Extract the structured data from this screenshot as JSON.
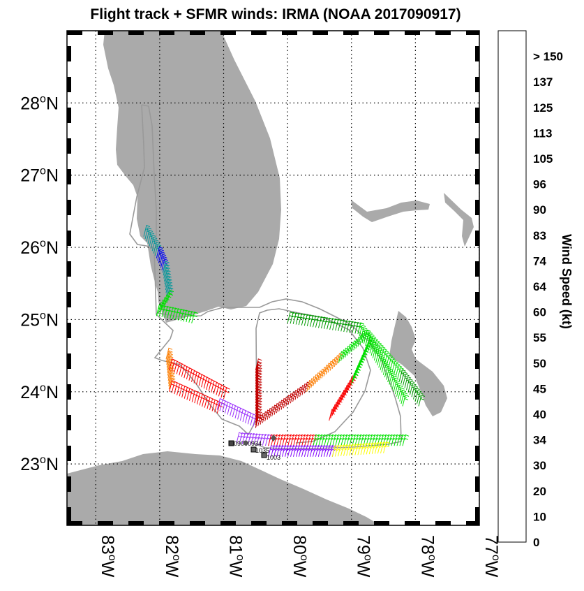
{
  "chart_data": {
    "type": "map",
    "title": "Flight track + SFMR winds: IRMA (NOAA 2017090917)",
    "xlim": [
      -83.45,
      -77.0
    ],
    "ylim": [
      22.15,
      29.0
    ],
    "x_ticks": [
      -83,
      -82,
      -81,
      -80,
      -79,
      -78,
      -77
    ],
    "x_tick_labels": [
      "83oW",
      "82oW",
      "81oW",
      "80oW",
      "79oW",
      "78oW",
      "77oW"
    ],
    "y_ticks": [
      23,
      24,
      25,
      26,
      27,
      28
    ],
    "y_tick_labels": [
      "23oN",
      "24oN",
      "25oN",
      "26oN",
      "27oN",
      "28oN"
    ],
    "grid": true,
    "colorbar": {
      "title": "Wind Speed (kt)",
      "labels": [
        "0",
        "10",
        "20",
        "30",
        "34",
        "40",
        "45",
        "50",
        "55",
        "60",
        "64",
        "74",
        "83",
        "90",
        "96",
        "105",
        "113",
        "125",
        "137",
        "> 150"
      ],
      "colors": [
        "#f5f5fc",
        "#2efcfc",
        "#00979a",
        "#0000fa",
        "#009a00",
        "#00e000",
        "#fcfc00",
        "#fc7d00",
        "#fa0000",
        "#c10000",
        "#7f00fc",
        "#9b32fc",
        "#b25ffa",
        "#c796fa",
        "#e0c7fa",
        "#fcc7e0",
        "#fc96c7",
        "#f864af",
        "#e33296",
        "#cc0068"
      ]
    },
    "land_color": "#aaaaaa",
    "track_color": "#999999",
    "station_labels": [
      "0900",
      "0934",
      "1035",
      "1003"
    ],
    "wind_segments": [
      {
        "from": [
          -82.25,
          26.15
        ],
        "to": [
          -82.05,
          25.85
        ],
        "speed": 20
      },
      {
        "from": [
          -82.05,
          25.85
        ],
        "to": [
          -81.95,
          25.65
        ],
        "speed": 30
      },
      {
        "from": [
          -81.95,
          25.65
        ],
        "to": [
          -81.88,
          25.25
        ],
        "speed": 20
      },
      {
        "from": [
          -81.88,
          25.25
        ],
        "to": [
          -82.05,
          25.05
        ],
        "speed": 40
      },
      {
        "from": [
          -82.05,
          25.05
        ],
        "to": [
          -81.5,
          24.95
        ],
        "speed": 40
      },
      {
        "from": [
          -81.9,
          24.45
        ],
        "to": [
          -81.85,
          24.0
        ],
        "speed": 50
      },
      {
        "from": [
          -81.85,
          24.0
        ],
        "to": [
          -81.1,
          23.7
        ],
        "speed": 55
      },
      {
        "from": [
          -81.85,
          24.3
        ],
        "to": [
          -81.0,
          23.9
        ],
        "speed": 55
      },
      {
        "from": [
          -81.1,
          23.75
        ],
        "to": [
          -80.5,
          23.5
        ],
        "speed": 74
      },
      {
        "from": [
          -80.5,
          24.3
        ],
        "to": [
          -80.5,
          23.5
        ],
        "speed": 60
      },
      {
        "from": [
          -80.5,
          23.5
        ],
        "to": [
          -79.7,
          24.0
        ],
        "speed": 60
      },
      {
        "from": [
          -79.7,
          24.0
        ],
        "to": [
          -79.2,
          24.4
        ],
        "speed": 50
      },
      {
        "from": [
          -79.2,
          24.4
        ],
        "to": [
          -78.8,
          24.7
        ],
        "speed": 40
      },
      {
        "from": [
          -78.8,
          24.7
        ],
        "to": [
          -78.25,
          24.15
        ],
        "speed": 40
      },
      {
        "from": [
          -78.25,
          24.15
        ],
        "to": [
          -77.95,
          23.8
        ],
        "speed": 34
      },
      {
        "from": [
          -80.0,
          24.95
        ],
        "to": [
          -78.9,
          24.8
        ],
        "speed": 34
      },
      {
        "from": [
          -78.9,
          24.8
        ],
        "to": [
          -78.2,
          23.8
        ],
        "speed": 40
      },
      {
        "from": [
          -79.35,
          23.6
        ],
        "to": [
          -79.0,
          24.1
        ],
        "speed": 55
      },
      {
        "from": [
          -79.0,
          24.1
        ],
        "to": [
          -78.75,
          24.6
        ],
        "speed": 40
      },
      {
        "from": [
          -80.8,
          23.28
        ],
        "to": [
          -80.3,
          23.25
        ],
        "speed": 74
      },
      {
        "from": [
          -80.3,
          23.25
        ],
        "to": [
          -79.6,
          23.25
        ],
        "speed": 55
      },
      {
        "from": [
          -79.6,
          23.25
        ],
        "to": [
          -78.2,
          23.25
        ],
        "speed": 40
      },
      {
        "from": [
          -80.3,
          23.1
        ],
        "to": [
          -79.3,
          23.1
        ],
        "speed": 64
      },
      {
        "from": [
          -79.3,
          23.1
        ],
        "to": [
          -78.5,
          23.15
        ],
        "speed": 45
      }
    ]
  }
}
